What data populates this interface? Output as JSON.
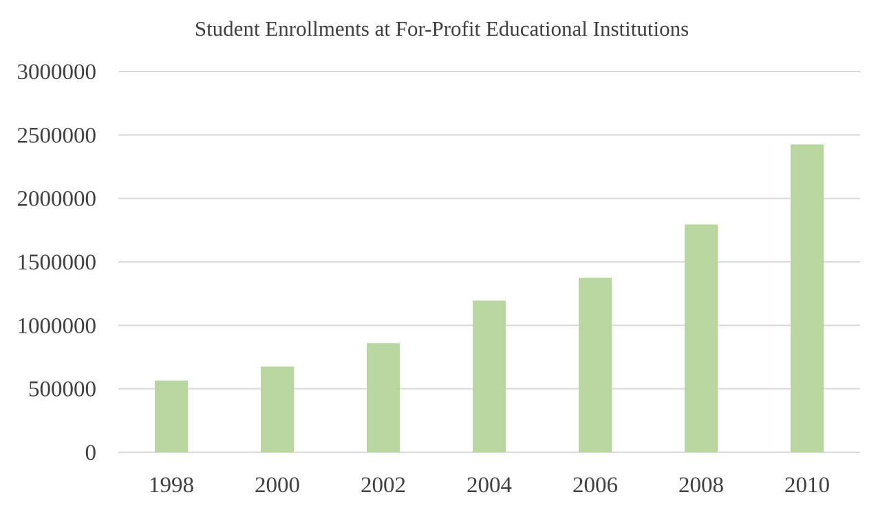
{
  "chart_data": {
    "type": "bar",
    "title": "Student Enrollments at For-Profit Educational Institutions",
    "xlabel": "",
    "ylabel": "",
    "categories": [
      "1998",
      "2000",
      "2002",
      "2004",
      "2006",
      "2008",
      "2010"
    ],
    "values": [
      565000,
      675000,
      860000,
      1195000,
      1375000,
      1795000,
      2425000
    ],
    "ylim": [
      0,
      3000000
    ],
    "yticks": [
      "0",
      "500000",
      "1000000",
      "1500000",
      "2000000",
      "2500000",
      "3000000"
    ],
    "grid": true,
    "legend": "none",
    "bar_color": "#b8d7a0"
  }
}
